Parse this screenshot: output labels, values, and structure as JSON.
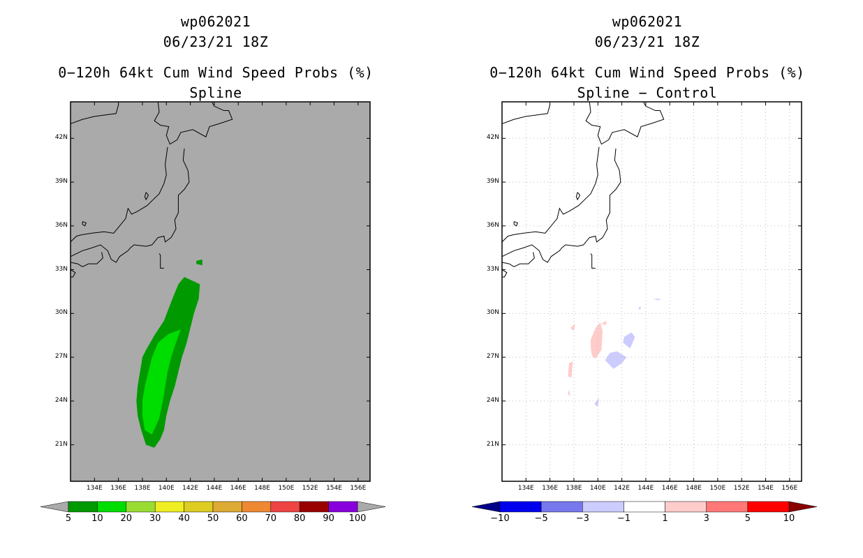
{
  "panels": [
    {
      "id": "left",
      "title": {
        "storm_id": "wp062021",
        "datetime": "06/23/21 18Z",
        "product": "0−120h 64kt Cum Wind Speed Probs (%)",
        "subtitle": "Spline"
      },
      "colorbar": {
        "labels": [
          "5",
          "10",
          "20",
          "30",
          "40",
          "50",
          "60",
          "70",
          "80",
          "90",
          "100"
        ],
        "colors": [
          "#009900",
          "#00dd00",
          "#99dd33",
          "#eeee22",
          "#ddcc22",
          "#ddaa33",
          "#ee8833",
          "#ee4444",
          "#990000",
          "#8800dd"
        ],
        "under_color": "#aaaaaa",
        "over_color": "#aaaaaa"
      }
    },
    {
      "id": "right",
      "title": {
        "storm_id": "wp062021",
        "datetime": "06/23/21 18Z",
        "product": "0−120h 64kt Cum Wind Speed Probs (%)",
        "subtitle": "Spline − Control"
      },
      "colorbar": {
        "labels": [
          "−10",
          "−5",
          "−3",
          "−1",
          "1",
          "3",
          "5",
          "10"
        ],
        "colors": [
          "#0000ee",
          "#7777ee",
          "#ccccff",
          "#ffffff",
          "#ffcccc",
          "#ff7777",
          "#ff0000"
        ],
        "under_color": "#000088",
        "over_color": "#880000"
      }
    }
  ],
  "chart_data": [
    {
      "type": "heatmap",
      "title": "0−120h 64kt Cum Wind Speed Probs (%) — Spline",
      "x_tick_labels": [
        "134E",
        "136E",
        "138E",
        "140E",
        "142E",
        "144E",
        "146E",
        "148E",
        "150E",
        "152E",
        "154E",
        "156E"
      ],
      "y_tick_labels": [
        "21N",
        "24N",
        "27N",
        "30N",
        "33N",
        "36N",
        "39N",
        "42N"
      ],
      "xlim": [
        132.0,
        157.0
      ],
      "ylim": [
        18.5,
        44.5
      ],
      "x_ticks": [
        134,
        136,
        138,
        140,
        142,
        144,
        146,
        148,
        150,
        152,
        154,
        156
      ],
      "y_ticks": [
        21,
        24,
        27,
        30,
        33,
        36,
        39,
        42
      ],
      "levels": [
        5,
        10,
        20,
        30,
        40,
        50,
        60,
        70,
        80,
        90,
        100
      ],
      "regions": [
        {
          "level_min": 5,
          "level_max": 10,
          "polygon": [
            [
              141.5,
              32.5
            ],
            [
              142.8,
              32.0
            ],
            [
              142.7,
              31.0
            ],
            [
              142.3,
              30.0
            ],
            [
              142.0,
              29.0
            ],
            [
              141.7,
              28.0
            ],
            [
              141.3,
              27.0
            ],
            [
              141.0,
              26.0
            ],
            [
              140.7,
              25.0
            ],
            [
              140.3,
              24.0
            ],
            [
              140.0,
              23.0
            ],
            [
              139.8,
              22.0
            ],
            [
              139.5,
              21.4
            ],
            [
              139.0,
              20.8
            ],
            [
              138.3,
              21.0
            ],
            [
              137.9,
              22.0
            ],
            [
              137.6,
              23.0
            ],
            [
              137.5,
              24.0
            ],
            [
              137.6,
              25.0
            ],
            [
              137.8,
              26.0
            ],
            [
              138.0,
              27.0
            ],
            [
              138.3,
              27.5
            ],
            [
              139.0,
              28.5
            ],
            [
              139.8,
              29.5
            ],
            [
              140.5,
              31.0
            ],
            [
              141.0,
              32.0
            ],
            [
              141.5,
              32.5
            ]
          ]
        },
        {
          "level_min": 5,
          "level_max": 10,
          "polygon": [
            [
              142.5,
              33.6
            ],
            [
              143.0,
              33.7
            ],
            [
              143.0,
              33.3
            ],
            [
              142.5,
              33.4
            ],
            [
              142.5,
              33.6
            ]
          ]
        },
        {
          "level_min": 10,
          "level_max": 20,
          "polygon": [
            [
              141.2,
              28.9
            ],
            [
              140.8,
              28.0
            ],
            [
              140.4,
              27.0
            ],
            [
              140.1,
              26.0
            ],
            [
              139.9,
              25.0
            ],
            [
              139.7,
              24.0
            ],
            [
              139.4,
              22.8
            ],
            [
              138.8,
              21.7
            ],
            [
              138.2,
              22.0
            ],
            [
              138.0,
              23.0
            ],
            [
              138.0,
              24.0
            ],
            [
              138.2,
              25.0
            ],
            [
              138.5,
              26.0
            ],
            [
              138.8,
              27.0
            ],
            [
              139.3,
              28.0
            ],
            [
              140.2,
              28.6
            ],
            [
              141.2,
              28.9
            ]
          ]
        }
      ]
    },
    {
      "type": "heatmap",
      "title": "0−120h 64kt Cum Wind Speed Probs (%) — Spline − Control",
      "x_tick_labels": [
        "134E",
        "136E",
        "138E",
        "140E",
        "142E",
        "144E",
        "146E",
        "148E",
        "150E",
        "152E",
        "154E",
        "156E"
      ],
      "y_tick_labels": [
        "21N",
        "24N",
        "27N",
        "30N",
        "33N",
        "36N",
        "39N",
        "42N"
      ],
      "xlim": [
        132.0,
        157.0
      ],
      "ylim": [
        18.5,
        44.5
      ],
      "x_ticks": [
        134,
        136,
        138,
        140,
        142,
        144,
        146,
        148,
        150,
        152,
        154,
        156
      ],
      "y_ticks": [
        21,
        24,
        27,
        30,
        33,
        36,
        39,
        42
      ],
      "levels": [
        -10,
        -5,
        -3,
        -1,
        1,
        3,
        5,
        10
      ],
      "regions": [
        {
          "level_min": 1,
          "level_max": 3,
          "polygon": [
            [
              139.4,
              28.2
            ],
            [
              139.8,
              29.0
            ],
            [
              140.2,
              29.4
            ],
            [
              140.4,
              28.8
            ],
            [
              140.3,
              27.5
            ],
            [
              139.8,
              26.9
            ],
            [
              139.5,
              27.1
            ],
            [
              139.4,
              27.7
            ],
            [
              139.4,
              28.2
            ]
          ]
        },
        {
          "level_min": 1,
          "level_max": 3,
          "polygon": [
            [
              140.3,
              29.3
            ],
            [
              140.7,
              29.5
            ],
            [
              140.7,
              29.2
            ],
            [
              140.3,
              29.3
            ]
          ]
        },
        {
          "level_min": 1,
          "level_max": 3,
          "polygon": [
            [
              137.7,
              29.0
            ],
            [
              138.1,
              29.3
            ],
            [
              138.0,
              28.8
            ],
            [
              137.7,
              29.0
            ]
          ]
        },
        {
          "level_min": 1,
          "level_max": 3,
          "polygon": [
            [
              137.5,
              25.7
            ],
            [
              137.6,
              26.6
            ],
            [
              137.9,
              26.7
            ],
            [
              137.8,
              25.6
            ],
            [
              137.5,
              25.7
            ]
          ]
        },
        {
          "level_min": 1,
          "level_max": 3,
          "polygon": [
            [
              137.5,
              24.5
            ],
            [
              137.6,
              24.8
            ],
            [
              137.7,
              24.3
            ],
            [
              137.5,
              24.5
            ]
          ]
        },
        {
          "level_min": -3,
          "level_max": -1,
          "polygon": [
            [
              140.6,
              26.8
            ],
            [
              141.3,
              26.2
            ],
            [
              142.0,
              26.6
            ],
            [
              142.4,
              27.0
            ],
            [
              141.6,
              27.4
            ],
            [
              141.0,
              27.3
            ],
            [
              140.6,
              26.8
            ]
          ]
        },
        {
          "level_min": -3,
          "level_max": -1,
          "polygon": [
            [
              142.1,
              28.0
            ],
            [
              142.7,
              27.6
            ],
            [
              143.1,
              28.4
            ],
            [
              142.8,
              28.7
            ],
            [
              142.2,
              28.4
            ],
            [
              142.1,
              28.0
            ]
          ]
        },
        {
          "level_min": -3,
          "level_max": -1,
          "polygon": [
            [
              139.7,
              23.8
            ],
            [
              140.1,
              24.2
            ],
            [
              140.0,
              23.6
            ],
            [
              139.7,
              23.8
            ]
          ]
        },
        {
          "level_min": -3,
          "level_max": -1,
          "polygon": [
            [
              143.4,
              30.4
            ],
            [
              143.6,
              30.5
            ],
            [
              143.5,
              30.2
            ],
            [
              143.4,
              30.4
            ]
          ]
        },
        {
          "level_min": -3,
          "level_max": -1,
          "polygon": [
            [
              144.6,
              31.0
            ],
            [
              145.3,
              31.0
            ],
            [
              145.0,
              30.9
            ],
            [
              144.6,
              31.0
            ]
          ]
        }
      ]
    }
  ]
}
